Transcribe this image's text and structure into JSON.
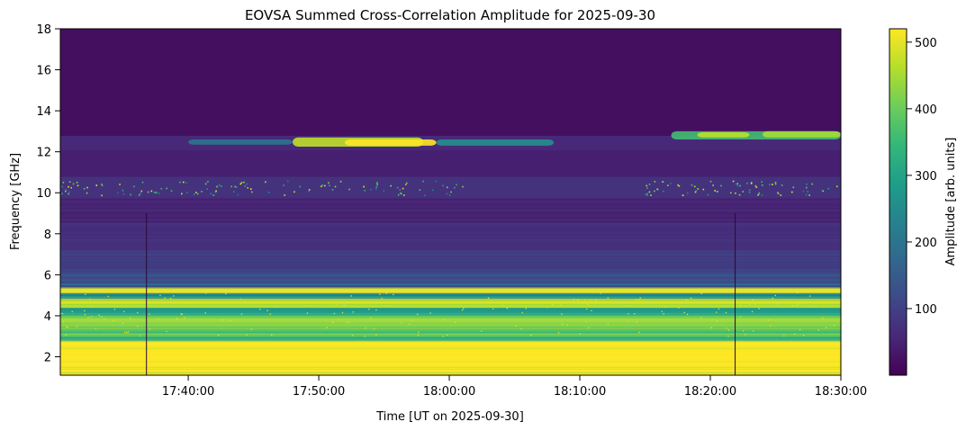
{
  "chart_data": {
    "type": "heatmap",
    "title": "EOVSA Summed Cross-Correlation Amplitude for 2025-09-30",
    "xlabel": "Time [UT on 2025-09-30]",
    "ylabel": "Frequency [GHz]",
    "colorbar_label": "Amplitude [arb. units]",
    "colormap": "viridis",
    "grid": false,
    "x_ticks": [
      "17:40:00",
      "17:50:00",
      "18:00:00",
      "18:10:00",
      "18:20:00",
      "18:30:00"
    ],
    "x_tick_minutes": [
      40,
      50,
      60,
      70,
      80,
      90
    ],
    "xlim_minutes_after_17h": [
      30.2,
      90
    ],
    "y_ticks": [
      2,
      4,
      6,
      8,
      10,
      12,
      14,
      16,
      18
    ],
    "ylim": [
      1.1,
      18
    ],
    "colorbar_ticks": [
      100,
      200,
      300,
      400,
      500
    ],
    "colorbar_range": [
      0,
      520
    ],
    "bands": [
      {
        "f0": 1.1,
        "f1": 2.8,
        "amp": 520
      },
      {
        "f0": 2.8,
        "f1": 3.0,
        "amp": 330
      },
      {
        "f0": 3.0,
        "f1": 3.5,
        "amp": 380
      },
      {
        "f0": 3.5,
        "f1": 4.0,
        "amp": 420
      },
      {
        "f0": 4.0,
        "f1": 4.4,
        "amp": 300
      },
      {
        "f0": 4.4,
        "f1": 4.8,
        "amp": 470
      },
      {
        "f0": 4.8,
        "f1": 5.1,
        "amp": 260
      },
      {
        "f0": 5.1,
        "f1": 5.35,
        "amp": 500
      },
      {
        "f0": 5.35,
        "f1": 5.8,
        "amp": 150
      },
      {
        "f0": 5.8,
        "f1": 6.3,
        "amp": 110
      },
      {
        "f0": 6.3,
        "f1": 7.2,
        "amp": 95
      },
      {
        "f0": 7.2,
        "f1": 8.5,
        "amp": 70
      },
      {
        "f0": 8.5,
        "f1": 9.8,
        "amp": 55
      },
      {
        "f0": 9.8,
        "f1": 10.8,
        "amp": 75
      },
      {
        "f0": 10.8,
        "f1": 12.1,
        "amp": 45
      },
      {
        "f0": 12.1,
        "f1": 12.8,
        "amp": 60
      },
      {
        "f0": 12.8,
        "f1": 18,
        "amp": 20
      }
    ],
    "features": [
      {
        "t0": 48,
        "t1": 58,
        "f0": 12.25,
        "f1": 12.7,
        "amp": 470
      },
      {
        "t0": 52,
        "t1": 59,
        "f0": 12.3,
        "f1": 12.6,
        "amp": 520
      },
      {
        "t0": 40,
        "t1": 48,
        "f0": 12.35,
        "f1": 12.6,
        "amp": 200
      },
      {
        "t0": 59,
        "t1": 68,
        "f0": 12.3,
        "f1": 12.6,
        "amp": 260
      },
      {
        "t0": 77,
        "t1": 90,
        "f0": 12.6,
        "f1": 13.0,
        "amp": 360
      },
      {
        "t0": 79,
        "t1": 83,
        "f0": 12.7,
        "f1": 12.95,
        "amp": 470
      },
      {
        "t0": 84,
        "t1": 90,
        "f0": 12.7,
        "f1": 13.0,
        "amp": 450
      }
    ],
    "dropouts_minutes": [
      36.8,
      81.9
    ],
    "speckle_band_ghz": [
      9.9,
      10.6
    ]
  }
}
